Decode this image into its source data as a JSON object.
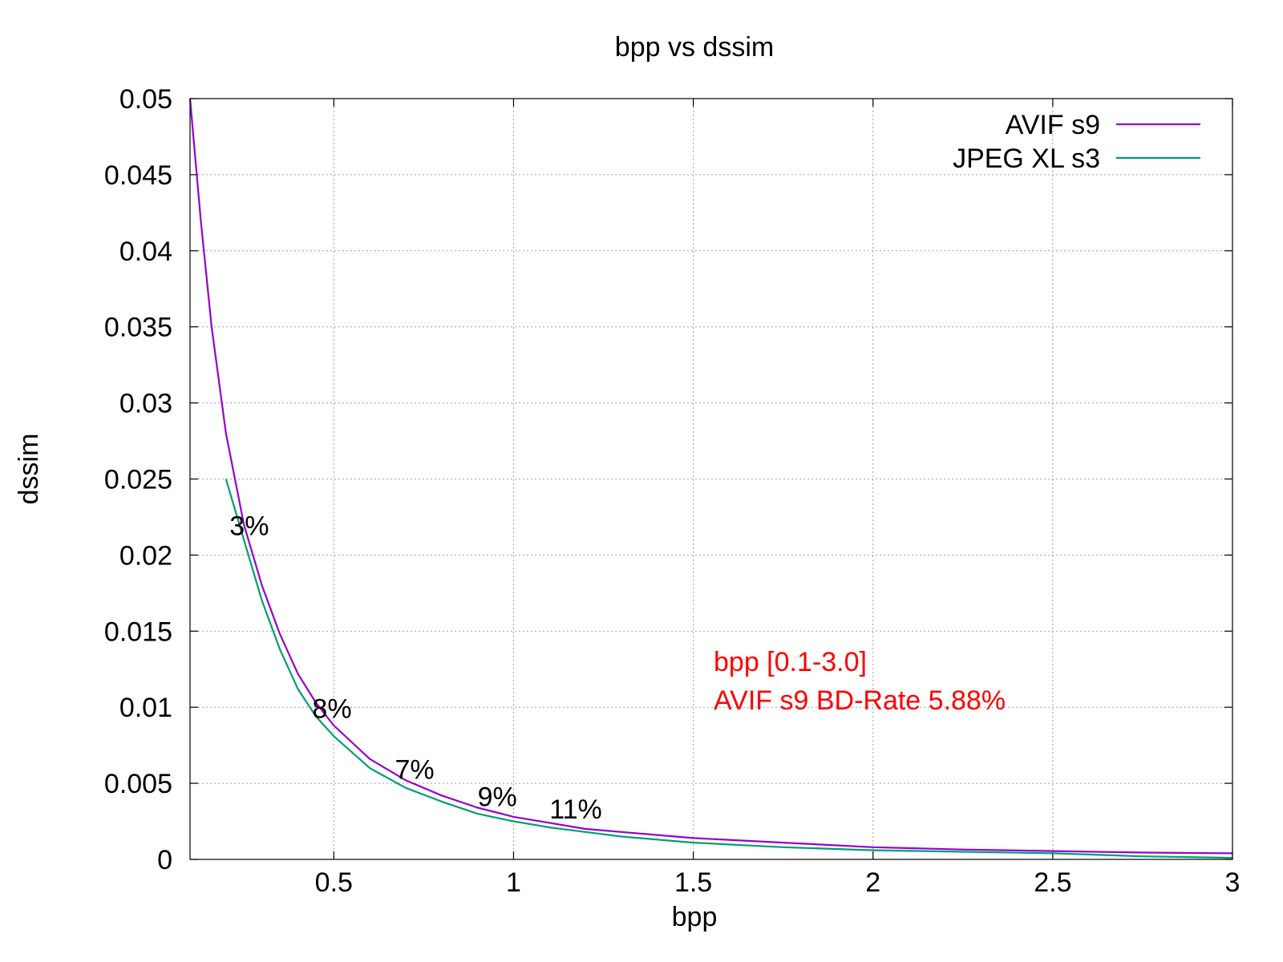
{
  "chart_data": {
    "type": "line",
    "title": "bpp vs dssim",
    "xlabel": "bpp",
    "ylabel": "dssim",
    "xlim": [
      0.1,
      3.0
    ],
    "ylim": [
      0,
      0.05
    ],
    "x_ticks": [
      0.5,
      1,
      1.5,
      2,
      2.5,
      3
    ],
    "x_tick_labels": [
      "0.5",
      "1",
      "1.5",
      "2",
      "2.5",
      "3"
    ],
    "y_ticks": [
      0,
      0.005,
      0.01,
      0.015,
      0.02,
      0.025,
      0.03,
      0.035,
      0.04,
      0.045,
      0.05
    ],
    "y_tick_labels": [
      "0",
      "0.005",
      "0.01",
      "0.015",
      "0.02",
      "0.025",
      "0.03",
      "0.035",
      "0.04",
      "0.045",
      "0.05"
    ],
    "grid": true,
    "legend_position": "top-right",
    "series": [
      {
        "name": "AVIF s9",
        "color": "#9400d3",
        "points": [
          [
            0.1,
            0.05
          ],
          [
            0.13,
            0.042
          ],
          [
            0.16,
            0.035
          ],
          [
            0.2,
            0.028
          ],
          [
            0.25,
            0.022
          ],
          [
            0.3,
            0.018
          ],
          [
            0.35,
            0.0148
          ],
          [
            0.4,
            0.0122
          ],
          [
            0.45,
            0.0103
          ],
          [
            0.5,
            0.0088
          ],
          [
            0.6,
            0.0066
          ],
          [
            0.7,
            0.0052
          ],
          [
            0.8,
            0.0042
          ],
          [
            0.9,
            0.0034
          ],
          [
            1.0,
            0.0028
          ],
          [
            1.1,
            0.0024
          ],
          [
            1.2,
            0.002
          ],
          [
            1.3,
            0.0018
          ],
          [
            1.5,
            0.0014
          ],
          [
            1.75,
            0.0011
          ],
          [
            2.0,
            0.0008
          ],
          [
            2.25,
            0.00065
          ],
          [
            2.5,
            0.00055
          ],
          [
            2.75,
            0.00045
          ],
          [
            3.0,
            0.0004
          ]
        ]
      },
      {
        "name": "JPEG XL s3",
        "color": "#009e73",
        "points": [
          [
            0.2,
            0.025
          ],
          [
            0.25,
            0.021
          ],
          [
            0.3,
            0.017
          ],
          [
            0.35,
            0.0138
          ],
          [
            0.4,
            0.0112
          ],
          [
            0.45,
            0.0094
          ],
          [
            0.5,
            0.0081
          ],
          [
            0.6,
            0.006
          ],
          [
            0.7,
            0.0047
          ],
          [
            0.8,
            0.0038
          ],
          [
            0.9,
            0.003
          ],
          [
            1.0,
            0.0025
          ],
          [
            1.1,
            0.0021
          ],
          [
            1.2,
            0.0018
          ],
          [
            1.3,
            0.0015
          ],
          [
            1.5,
            0.0011
          ],
          [
            1.75,
            0.0008
          ],
          [
            2.0,
            0.0006
          ],
          [
            2.25,
            0.0005
          ],
          [
            2.5,
            0.0004
          ],
          [
            2.75,
            0.0002
          ],
          [
            3.0,
            0.0001
          ]
        ]
      }
    ],
    "annotations": [
      {
        "text": "3%",
        "x": 0.21,
        "y": 0.0213
      },
      {
        "text": "8%",
        "x": 0.44,
        "y": 0.0093
      },
      {
        "text": "7%",
        "x": 0.67,
        "y": 0.0053
      },
      {
        "text": "9%",
        "x": 0.9,
        "y": 0.0035
      },
      {
        "text": "11%",
        "x": 1.1,
        "y": 0.0027
      }
    ],
    "notes": {
      "color": "#ff0000",
      "lines": [
        "bpp [0.1-3.0]",
        "AVIF s9 BD-Rate 5.88%"
      ]
    }
  }
}
